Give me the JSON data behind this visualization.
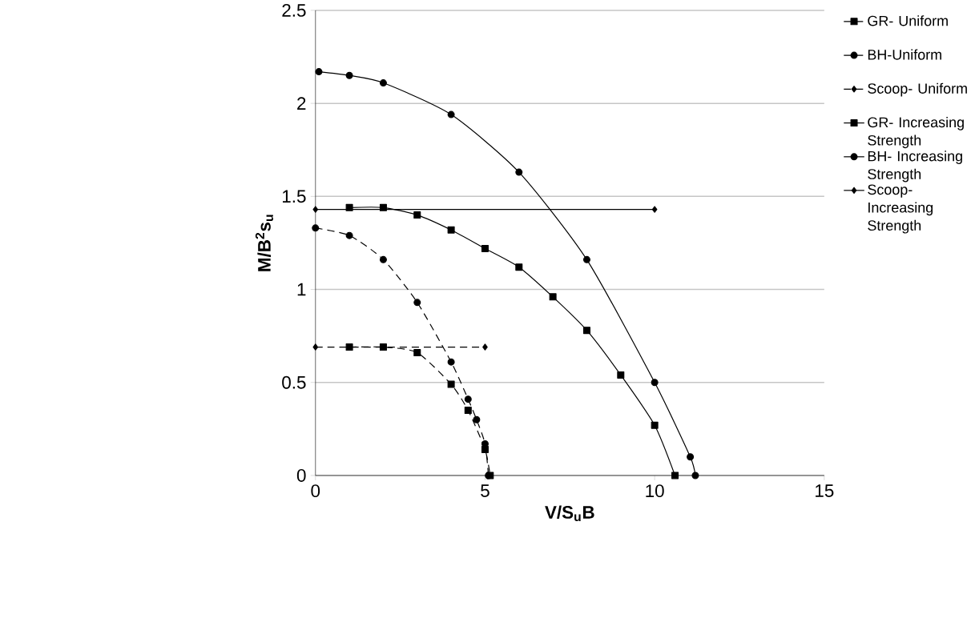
{
  "chart_data": {
    "type": "line",
    "xlabel": "V/S$_{u}$B",
    "ylabel": "M/B$^{2}$s$_{u}$",
    "xlim": [
      0,
      15
    ],
    "xticks": [
      0,
      5,
      10,
      15
    ],
    "ylim": [
      0,
      2.5
    ],
    "yticks": [
      0,
      0.5,
      1,
      1.5,
      2,
      2.5
    ],
    "grid": "y",
    "legend": "right",
    "series": [
      {
        "name": "GR- Uniform",
        "color": "#000000",
        "marker": "square",
        "line_style": "dashed",
        "x": [
          1.0,
          2.0,
          3.0,
          4.0,
          4.5,
          5.0,
          5.15
        ],
        "values": [
          0.69,
          0.69,
          0.66,
          0.49,
          0.35,
          0.14,
          0.0
        ]
      },
      {
        "name": "BH-Uniform",
        "color": "#000000",
        "marker": "circle",
        "line_style": "dashed",
        "x": [
          0,
          1.0,
          2.0,
          3.0,
          4.0,
          4.5,
          4.75,
          5.0,
          5.1
        ],
        "values": [
          1.33,
          1.29,
          1.16,
          0.93,
          0.61,
          0.41,
          0.3,
          0.17,
          0.0
        ]
      },
      {
        "name": "Scoop- Uniform",
        "color": "#000000",
        "marker": "diamond",
        "line_style": "dashed",
        "x": [
          0,
          5.0
        ],
        "values": [
          0.69,
          0.69
        ]
      },
      {
        "name": "GR- Increasing Strength",
        "color": "#000000",
        "marker": "square",
        "line_style": "solid",
        "x": [
          1.0,
          2.0,
          3.0,
          4.0,
          5.0,
          6.0,
          7.0,
          8.0,
          9.0,
          10.0,
          10.6
        ],
        "values": [
          1.44,
          1.44,
          1.4,
          1.32,
          1.22,
          1.12,
          0.96,
          0.78,
          0.54,
          0.27,
          0.0
        ]
      },
      {
        "name": "BH- Increasing Strength",
        "color": "#000000",
        "marker": "circle",
        "line_style": "solid",
        "x": [
          0.1,
          1.0,
          2.0,
          4.0,
          6.0,
          8.0,
          10.0,
          11.05,
          11.2
        ],
        "values": [
          2.17,
          2.15,
          2.11,
          1.94,
          1.63,
          1.16,
          0.5,
          0.1,
          0.0
        ]
      },
      {
        "name": "Scoop- Increasing Strength",
        "color": "#000000",
        "marker": "diamond",
        "line_style": "solid",
        "x": [
          0,
          10.0
        ],
        "values": [
          1.43,
          1.43
        ]
      }
    ]
  }
}
